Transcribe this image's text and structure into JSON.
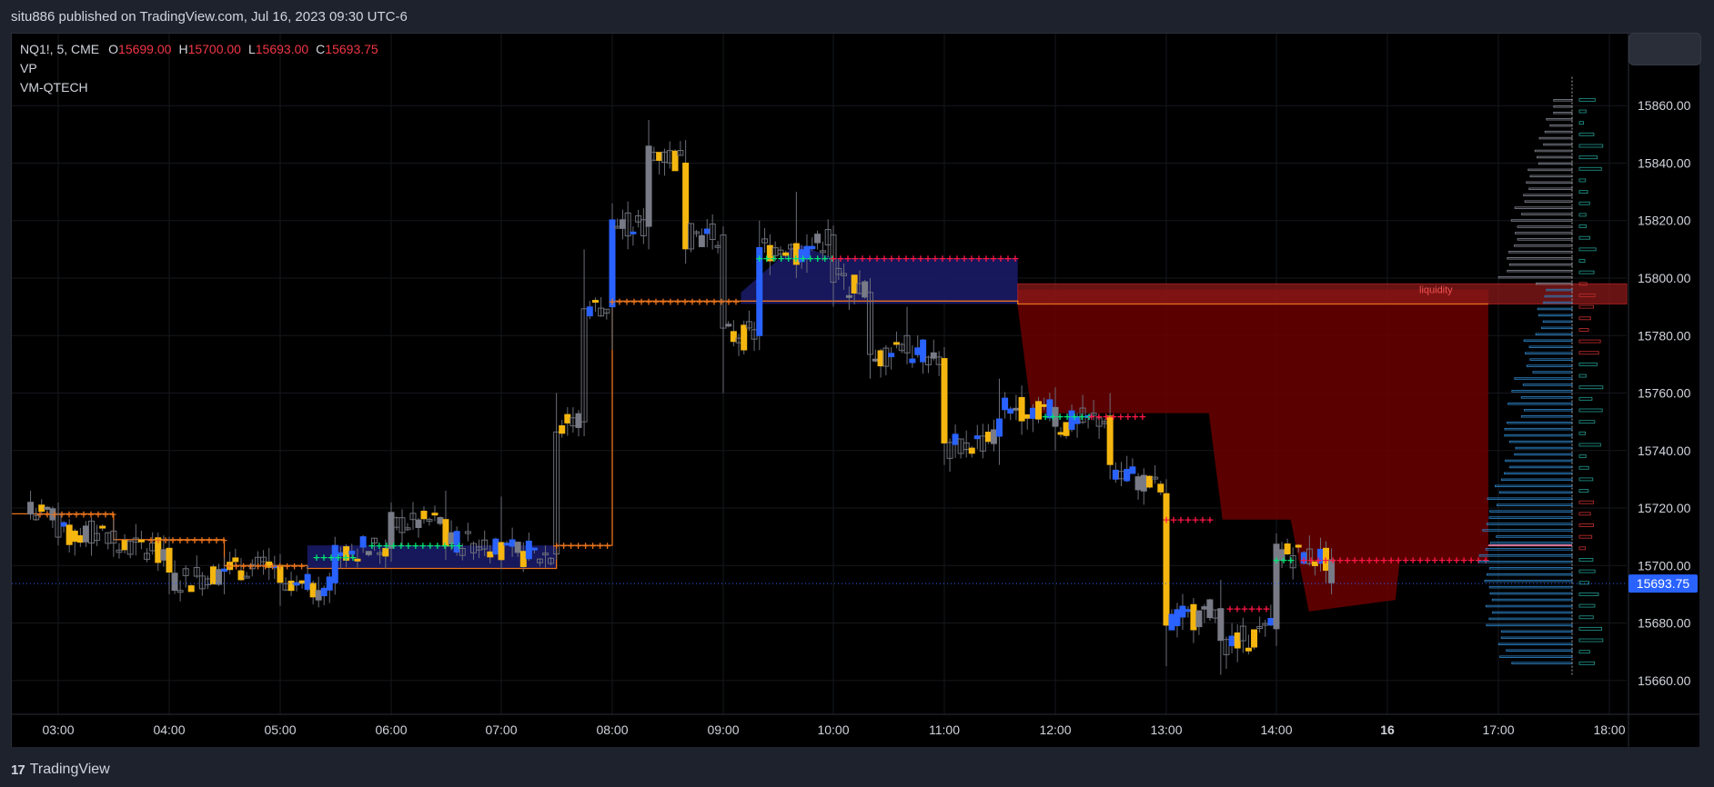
{
  "header": {
    "published": "situ886 published on TradingView.com, Jul 16, 2023 09:30 UTC-6"
  },
  "legend": {
    "symbol": "NQ1!, 5, CME",
    "o_label": "O",
    "o_value": "15699.00",
    "h_label": "H",
    "h_value": "15700.00",
    "l_label": "L",
    "l_value": "15693.00",
    "c_label": "C",
    "c_value": "15693.75",
    "indicator1": "VP",
    "indicator2": "VM-QTECH"
  },
  "brand": {
    "name": "TradingView",
    "logo": "17"
  },
  "annotations": {
    "liquidity": "liquidity"
  },
  "colors": {
    "background": "#000000",
    "bull_up": "#2962ff",
    "bear_down": "#f5b60f",
    "neutral": "#787b86",
    "value_area": "#1a1a66",
    "liquidity": "#6b0000",
    "vwap_line": "#e8721c",
    "buy_marker": "#00e676",
    "sell_marker": "#ff1744",
    "last_price": "#2962ff"
  },
  "chart_data": {
    "type": "candlestick",
    "title": "",
    "xlabel": "",
    "ylabel": "",
    "ylim": [
      15650,
      15885
    ],
    "last_price": "15693.75",
    "y_ticks": [
      "15660.00",
      "15680.00",
      "15700.00",
      "15720.00",
      "15740.00",
      "15760.00",
      "15780.00",
      "15800.00",
      "15820.00",
      "15840.00",
      "15860.00"
    ],
    "x_ticks": [
      "03:00",
      "04:00",
      "05:00",
      "06:00",
      "07:00",
      "08:00",
      "09:00",
      "10:00",
      "11:00",
      "12:00",
      "13:00",
      "14:00",
      "16",
      "17:00",
      "18:00"
    ],
    "candles_approx": [
      {
        "t": "02:45",
        "o": 15722,
        "h": 15726,
        "l": 15716,
        "c": 15718
      },
      {
        "t": "03:00",
        "o": 15718,
        "h": 15722,
        "l": 15707,
        "c": 15710
      },
      {
        "t": "03:30",
        "o": 15712,
        "h": 15716,
        "l": 15704,
        "c": 15706
      },
      {
        "t": "04:00",
        "o": 15706,
        "h": 15710,
        "l": 15690,
        "c": 15694
      },
      {
        "t": "04:30",
        "o": 15698,
        "h": 15703,
        "l": 15690,
        "c": 15699
      },
      {
        "t": "05:00",
        "o": 15700,
        "h": 15704,
        "l": 15686,
        "c": 15690
      },
      {
        "t": "05:30",
        "o": 15694,
        "h": 15710,
        "l": 15690,
        "c": 15706
      },
      {
        "t": "06:00",
        "o": 15706,
        "h": 15722,
        "l": 15702,
        "c": 15714
      },
      {
        "t": "06:30",
        "o": 15716,
        "h": 15726,
        "l": 15702,
        "c": 15708
      },
      {
        "t": "07:00",
        "o": 15708,
        "h": 15724,
        "l": 15700,
        "c": 15704
      },
      {
        "t": "07:30",
        "o": 15704,
        "h": 15760,
        "l": 15702,
        "c": 15750
      },
      {
        "t": "07:45",
        "o": 15750,
        "h": 15810,
        "l": 15745,
        "c": 15790
      },
      {
        "t": "08:00",
        "o": 15790,
        "h": 15826,
        "l": 15775,
        "c": 15818
      },
      {
        "t": "08:20",
        "o": 15818,
        "h": 15855,
        "l": 15810,
        "c": 15845
      },
      {
        "t": "08:40",
        "o": 15840,
        "h": 15848,
        "l": 15805,
        "c": 15815
      },
      {
        "t": "09:00",
        "o": 15815,
        "h": 15818,
        "l": 15760,
        "c": 15780
      },
      {
        "t": "09:20",
        "o": 15780,
        "h": 15820,
        "l": 15775,
        "c": 15810
      },
      {
        "t": "09:40",
        "o": 15812,
        "h": 15830,
        "l": 15800,
        "c": 15808
      },
      {
        "t": "10:00",
        "o": 15815,
        "h": 15818,
        "l": 15790,
        "c": 15800
      },
      {
        "t": "10:20",
        "o": 15795,
        "h": 15800,
        "l": 15765,
        "c": 15770
      },
      {
        "t": "10:40",
        "o": 15780,
        "h": 15790,
        "l": 15770,
        "c": 15775
      },
      {
        "t": "11:00",
        "o": 15772,
        "h": 15775,
        "l": 15735,
        "c": 15740
      },
      {
        "t": "11:30",
        "o": 15745,
        "h": 15765,
        "l": 15735,
        "c": 15755
      },
      {
        "t": "12:00",
        "o": 15755,
        "h": 15762,
        "l": 15740,
        "c": 15748
      },
      {
        "t": "12:30",
        "o": 15752,
        "h": 15760,
        "l": 15730,
        "c": 15735
      },
      {
        "t": "13:00",
        "o": 15725,
        "h": 15730,
        "l": 15665,
        "c": 15680
      },
      {
        "t": "13:30",
        "o": 15685,
        "h": 15695,
        "l": 15662,
        "c": 15672
      },
      {
        "t": "14:00",
        "o": 15678,
        "h": 15710,
        "l": 15672,
        "c": 15705
      },
      {
        "t": "14:30",
        "o": 15702,
        "h": 15706,
        "l": 15690,
        "c": 15694
      }
    ],
    "buy_signals_level": [
      15706,
      15752,
      15807,
      15700
    ],
    "sell_signals_level": [
      15807,
      15752,
      15716,
      15702
    ],
    "value_area": {
      "from": "05:15",
      "to": "07:30",
      "low": 15699,
      "high": 15707
    },
    "value_area_2": {
      "from": "09:10",
      "to": "11:40",
      "low": 15791,
      "high": 15807
    },
    "liquidity_zone": {
      "low": 15791,
      "high": 15795,
      "label": "liquidity"
    },
    "liquidity_fill": {
      "from": "11:40",
      "to": "15:55",
      "top": 15791,
      "bottom": 15685
    }
  }
}
